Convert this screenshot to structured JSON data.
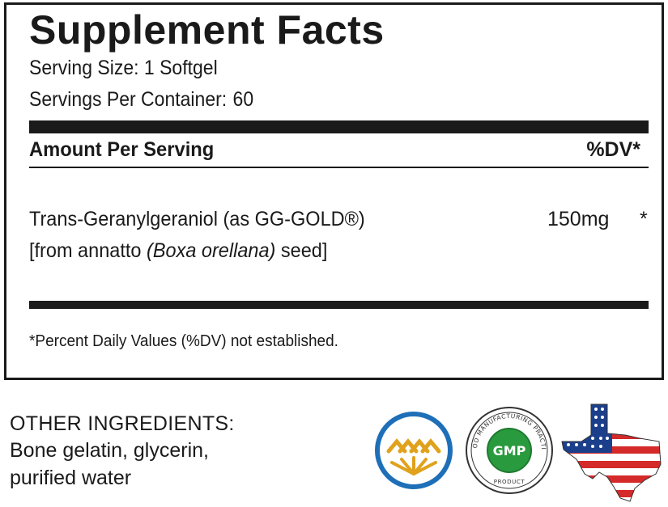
{
  "panel": {
    "title": "Supplement Facts",
    "serving_size": "Serving Size: 1 Softgel",
    "servings_per_container_label": "Servings Per Container:",
    "servings_per_container_value": "60",
    "amount_header": "Amount Per Serving",
    "dv_header": "%DV*",
    "ingredient": {
      "name": "Trans-Geranylgeraniol (as GG-GOLD®)",
      "source_prefix": "[from annatto ",
      "source_latin": "(Boxa orellana)",
      "source_suffix": " seed]",
      "amount": "150mg",
      "dv": "*"
    },
    "footnote": "*Percent Daily Values (%DV) not established."
  },
  "other_ingredients": {
    "title": "OTHER INGREDIENTS:",
    "line1": "Bone gelatin, glycerin,",
    "line2": "purified water"
  },
  "badges": {
    "gmp_label": "GMP",
    "gmp_ring_text": "GOOD MANUFACTURING PRACTICE",
    "gmp_bottom_text": "PRODUCT",
    "icons": [
      "annatto-sunrise-logo-icon",
      "gmp-seal-icon",
      "usa-flag-texas-map-icon"
    ],
    "colors": {
      "logo_blue": "#1e6fb8",
      "logo_gold": "#e0a21c",
      "gmp_green": "#2a9a3e",
      "flag_red": "#d42a2a",
      "flag_blue": "#1c3f8c"
    }
  }
}
